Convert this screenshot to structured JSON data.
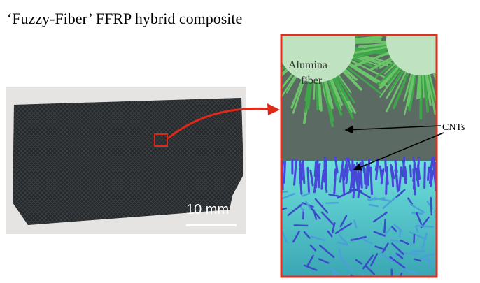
{
  "header": {
    "title": "‘Fuzzy-Fiber’ FFRP hybrid composite"
  },
  "photo": {
    "scale_label": "10 mm"
  },
  "inset": {
    "fiber_label": [
      "Alumina",
      "fiber"
    ],
    "cnt_label": "CNTs"
  }
}
